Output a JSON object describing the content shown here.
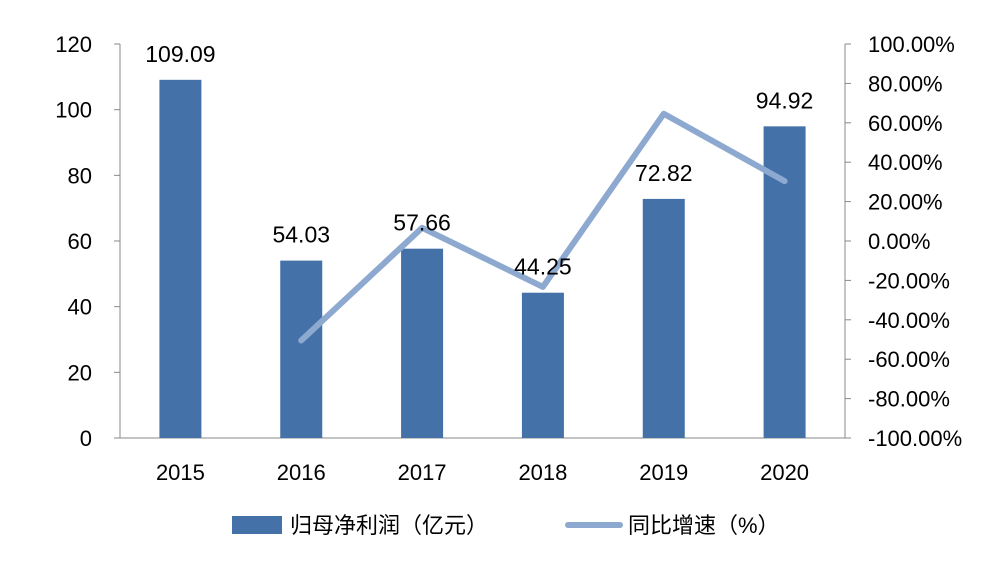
{
  "chart_data": {
    "type": "bar",
    "categories": [
      "2015",
      "2016",
      "2017",
      "2018",
      "2019",
      "2020"
    ],
    "series": [
      {
        "name": "归母净利润（亿元）",
        "type": "bar",
        "axis": "left",
        "values": [
          109.09,
          54.03,
          57.66,
          44.25,
          72.82,
          94.92
        ],
        "color": "#4472a8"
      },
      {
        "name": "同比增速（%）",
        "type": "line",
        "axis": "right",
        "values": [
          null,
          -50.5,
          6.7,
          -23.3,
          64.6,
          30.4
        ],
        "color": "#8ea9d0"
      }
    ],
    "data_labels": [
      "109.09",
      "54.03",
      "57.66",
      "44.25",
      "72.82",
      "94.92"
    ],
    "left_axis": {
      "min": 0,
      "max": 120,
      "ticks": [
        "0",
        "20",
        "40",
        "60",
        "80",
        "100",
        "120"
      ]
    },
    "right_axis": {
      "min": -100,
      "max": 100,
      "ticks": [
        "-100.00%",
        "-80.00%",
        "-60.00%",
        "-40.00%",
        "-20.00%",
        "0.00%",
        "20.00%",
        "40.00%",
        "60.00%",
        "80.00%",
        "100.00%"
      ]
    },
    "grid": false,
    "legend": "bottom"
  }
}
